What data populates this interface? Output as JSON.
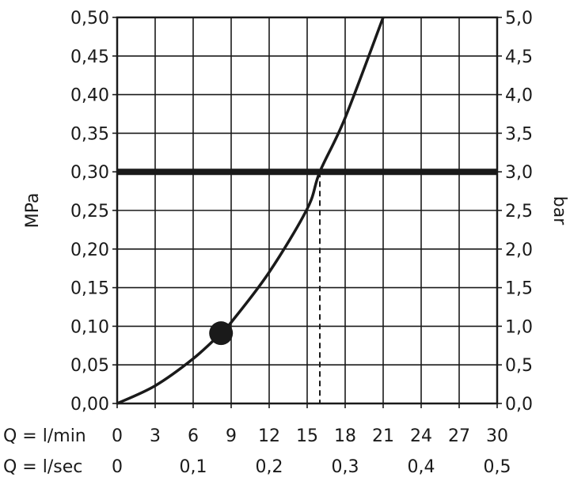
{
  "chart_data": {
    "type": "line",
    "y_left": {
      "label": "MPa",
      "range": [
        0,
        0.5
      ],
      "ticks": [
        "0,00",
        "0,05",
        "0,10",
        "0,15",
        "0,20",
        "0,25",
        "0,30",
        "0,35",
        "0,40",
        "0,45",
        "0,50"
      ]
    },
    "y_right": {
      "label": "bar",
      "range": [
        0,
        5
      ],
      "ticks": [
        "0,0",
        "0,5",
        "1,0",
        "1,5",
        "2,0",
        "2,5",
        "3,0",
        "3,5",
        "4,0",
        "4,5",
        "5,0"
      ]
    },
    "x_primary": {
      "label": "Q = l/min",
      "range": [
        0,
        30
      ],
      "ticks": [
        "0",
        "3",
        "6",
        "9",
        "12",
        "15",
        "18",
        "21",
        "24",
        "27",
        "30"
      ]
    },
    "x_secondary": {
      "label": "Q = l/sec",
      "ticks": [
        "0",
        "0,1",
        "0,2",
        "0,3",
        "0,4",
        "0,5"
      ]
    },
    "grid": true,
    "series": [
      {
        "x": [
          0,
          3,
          6,
          8.2,
          9,
          12,
          15,
          16,
          18,
          21
        ],
        "y": [
          0,
          0.023,
          0.058,
          0.091,
          0.105,
          0.17,
          0.252,
          0.3,
          0.37,
          0.5
        ],
        "color": "#1a1a1a"
      }
    ],
    "reference_line": {
      "y": 0.3
    },
    "reference_drop": {
      "x": 16,
      "y": 0.3
    },
    "marker": {
      "x": 8.2,
      "y": 0.091
    }
  }
}
